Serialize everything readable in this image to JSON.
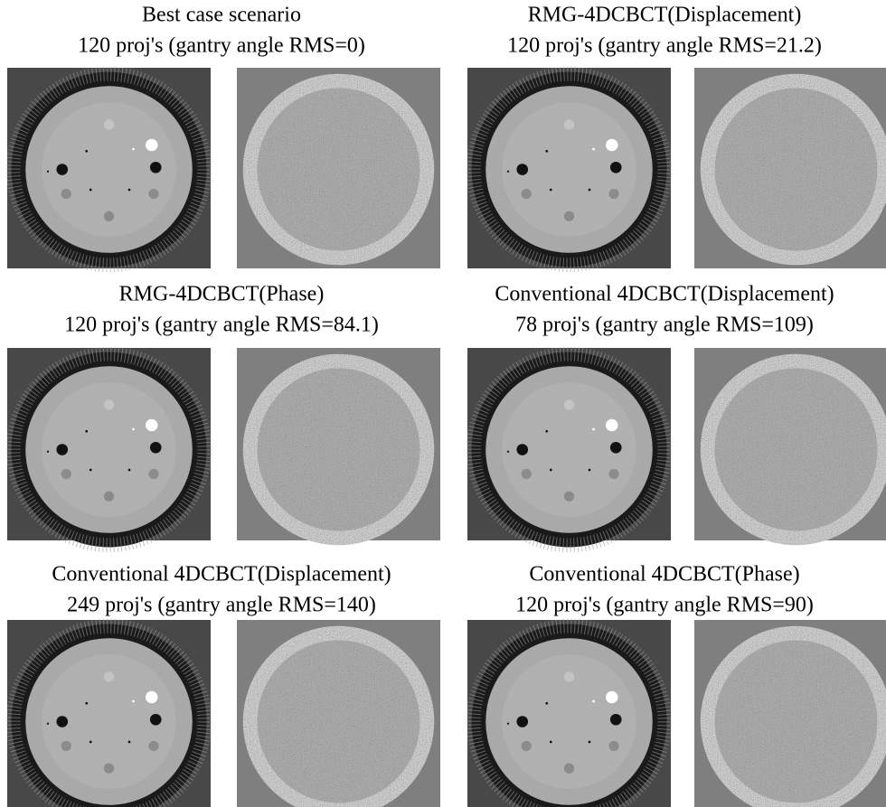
{
  "panels": [
    {
      "title": "Best case scenario",
      "subtitle": "120 proj's (gantry angle RMS=0)"
    },
    {
      "title": "RMG-4DCBCT(Displacement)",
      "subtitle": "120 proj's (gantry angle RMS=21.2)"
    },
    {
      "title": "RMG-4DCBCT(Phase)",
      "subtitle": "120 proj's (gantry angle RMS=84.1)"
    },
    {
      "title": "Conventional 4DCBCT(Displacement)",
      "subtitle": "78 proj's (gantry angle RMS=109)"
    },
    {
      "title": "Conventional 4DCBCT(Displacement)",
      "subtitle": "249 proj's (gantry angle RMS=140)"
    },
    {
      "title": "Conventional 4DCBCT(Phase)",
      "subtitle": "120 proj's (gantry angle RMS=90)"
    }
  ]
}
